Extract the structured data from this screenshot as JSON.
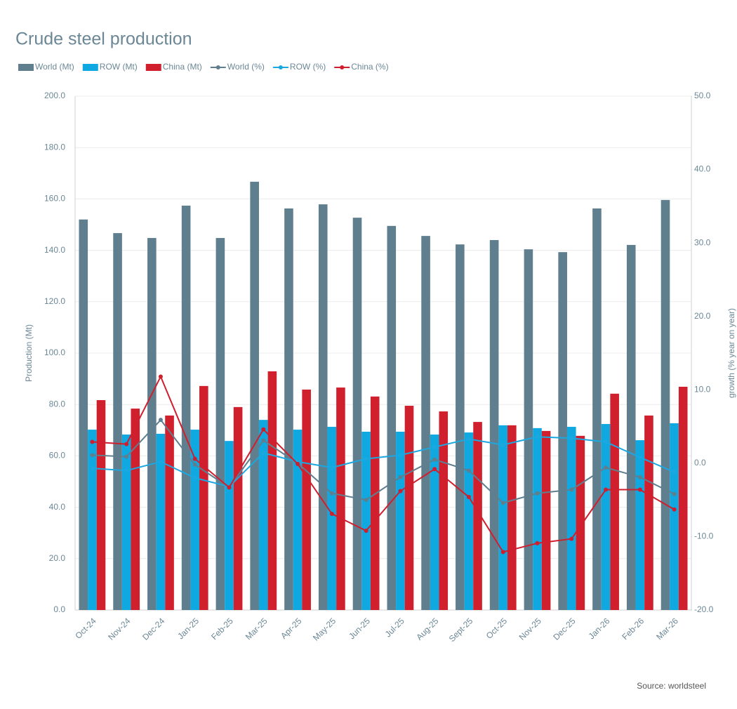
{
  "chart_data": {
    "type": "bar",
    "title": "Crude steel production",
    "ylabel": "Production (Mt)",
    "y2label": "growth (% year on year)",
    "source": "Source: worldsteel",
    "categories": [
      "Oct-24",
      "Nov-24",
      "Dec-24",
      "Jan-25",
      "Feb-25",
      "Mar-25",
      "Apr-25",
      "May-25",
      "Jun-25",
      "Jul-25",
      "Aug-25",
      "Sept-25",
      "Oct-25",
      "Nov-25",
      "Dec-25",
      "Jan-26",
      "Feb-26",
      "Mar-26"
    ],
    "series": [
      {
        "name": "World (Mt)",
        "type": "bar",
        "color": "#5f7f8f",
        "values": [
          152.0,
          146.7,
          144.8,
          157.4,
          144.8,
          166.7,
          156.3,
          157.9,
          152.7,
          149.5,
          145.6,
          142.3,
          144.0,
          140.4,
          139.3,
          156.3,
          142.1,
          159.6
        ]
      },
      {
        "name": "ROW (Mt)",
        "type": "bar",
        "color": "#0fa8e0",
        "values": [
          70.2,
          68.3,
          68.6,
          70.2,
          65.8,
          74.0,
          70.2,
          71.3,
          69.4,
          69.4,
          68.3,
          69.1,
          71.9,
          70.8,
          71.3,
          72.4,
          66.1,
          72.7
        ]
      },
      {
        "name": "China (Mt)",
        "type": "bar",
        "color": "#d0202e",
        "values": [
          81.7,
          78.4,
          75.7,
          87.2,
          79.0,
          92.9,
          85.8,
          86.6,
          83.1,
          79.5,
          77.3,
          73.2,
          71.9,
          69.7,
          67.8,
          84.2,
          75.7,
          86.9
        ]
      },
      {
        "name": "World (%)",
        "type": "line",
        "axis": "y2",
        "color": "#5f7f8f",
        "values": [
          1.1,
          0.9,
          5.9,
          -0.2,
          -3.3,
          3.1,
          0.0,
          -4.1,
          -5.0,
          -1.9,
          0.5,
          -1.0,
          -5.4,
          -4.1,
          -3.6,
          -0.6,
          -1.9,
          -4.2
        ]
      },
      {
        "name": "ROW (%)",
        "type": "line",
        "axis": "y2",
        "color": "#1ba8e0",
        "values": [
          -0.7,
          -1.0,
          0.2,
          -2.0,
          -3.2,
          1.4,
          0.2,
          -0.6,
          0.6,
          1.1,
          2.2,
          3.3,
          2.5,
          3.6,
          3.4,
          2.9,
          0.8,
          -1.2
        ]
      },
      {
        "name": "China (%)",
        "type": "line",
        "axis": "y2",
        "color": "#cf1f2e",
        "values": [
          2.9,
          2.6,
          11.8,
          0.6,
          -3.3,
          4.6,
          -0.1,
          -6.9,
          -9.2,
          -3.8,
          -0.8,
          -4.6,
          -12.1,
          -10.9,
          -10.3,
          -3.6,
          -3.6,
          -6.3
        ]
      }
    ],
    "ylim": [
      0,
      200
    ],
    "yticks": [
      {
        "value": 0,
        "label": "0.0"
      },
      {
        "value": 20,
        "label": "20.0"
      },
      {
        "value": 40,
        "label": "40.0"
      },
      {
        "value": 60,
        "label": "60.0"
      },
      {
        "value": 80,
        "label": "80.0"
      },
      {
        "value": 100,
        "label": "100.0"
      },
      {
        "value": 120,
        "label": "120.0"
      },
      {
        "value": 140,
        "label": "140.0"
      },
      {
        "value": 160,
        "label": "160.0"
      },
      {
        "value": 180,
        "label": "180.0"
      },
      {
        "value": 200,
        "label": "200.0"
      }
    ],
    "y2lim": [
      -20,
      50
    ],
    "y2ticks": [
      {
        "value": -20,
        "label": "-20.0"
      },
      {
        "value": -10,
        "label": "-10.0"
      },
      {
        "value": 0,
        "label": "0.0"
      },
      {
        "value": 10,
        "label": "10.0"
      },
      {
        "value": 20,
        "label": "20.0"
      },
      {
        "value": 30,
        "label": "30.0"
      },
      {
        "value": 40,
        "label": "40.0"
      },
      {
        "value": 50,
        "label": "50.0"
      }
    ],
    "grid": true,
    "legend": "top"
  }
}
